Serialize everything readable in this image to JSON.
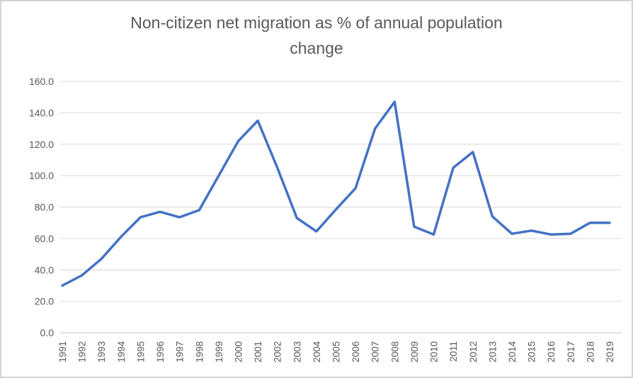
{
  "frame": {
    "background": "#ffffff",
    "border_color": "#d3d3d3"
  },
  "chart_data": {
    "type": "line",
    "title": "Non-citizen net migration as % of annual population\nchange",
    "categories": [
      "1991",
      "1992",
      "1993",
      "1994",
      "1995",
      "1996",
      "1997",
      "1998",
      "1999",
      "2000",
      "2001",
      "2002",
      "2003",
      "2004",
      "2005",
      "2006",
      "2007",
      "2008",
      "2009",
      "2010",
      "2011",
      "2012",
      "2013",
      "2014",
      "2015",
      "2016",
      "2017",
      "2018",
      "2019"
    ],
    "values": [
      30,
      36.5,
      47,
      61,
      73.5,
      77,
      73.5,
      78,
      100,
      122,
      135,
      105,
      73,
      64.5,
      78.5,
      92,
      130,
      147,
      67.5,
      62.5,
      105,
      115,
      74,
      63,
      65,
      62.5,
      63,
      70,
      70
    ],
    "xlabel": "",
    "ylabel": "",
    "ylim": [
      0,
      160
    ],
    "ytick_step": 20,
    "ytick_decimals": 1,
    "x_label_rotation_degrees": -90,
    "grid": true,
    "legend": "none",
    "colors": {
      "line": "#4472C4",
      "gridline": "#D9D9D9",
      "axis_line": "#C6C6C6",
      "text": "#595959"
    }
  }
}
